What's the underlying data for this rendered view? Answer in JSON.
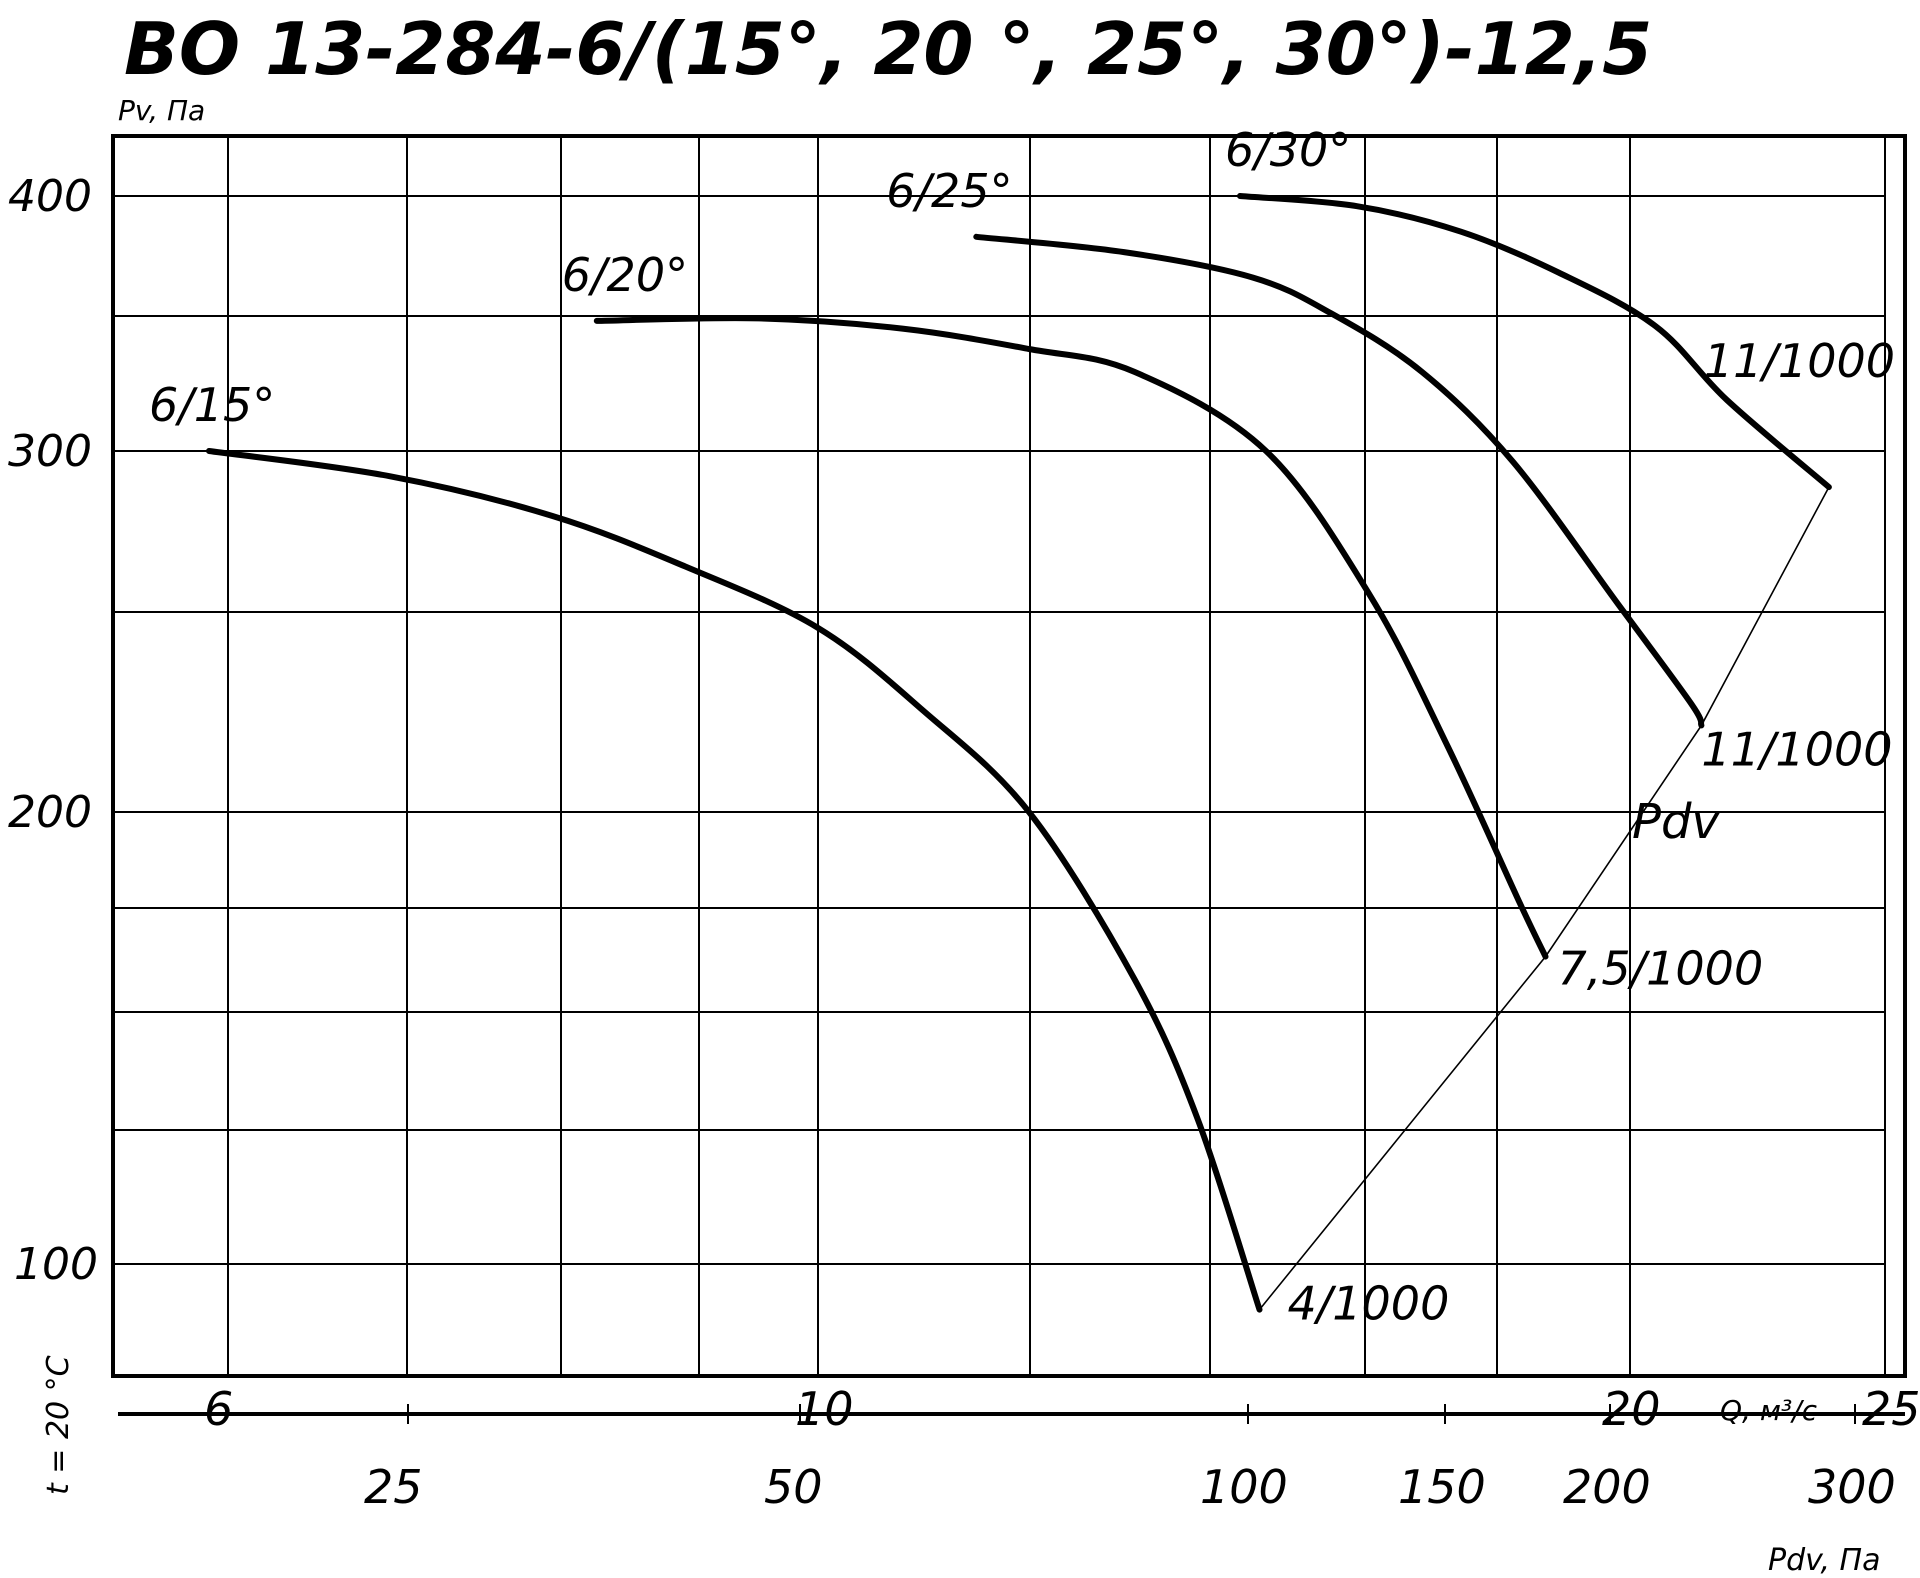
{
  "chart_data": {
    "type": "line",
    "title": "ВО 13-284-6/(15°, 20 °, 25°, 30°)-12,5",
    "ylabel": "Pv, Па",
    "xlabel": "Q, м³/с",
    "x2label": "Pdv, Па",
    "side_note": "t = 20 °C",
    "y_ticks": [
      {
        "label": "400",
        "value": 400
      },
      {
        "label": "300",
        "value": 300
      },
      {
        "label": "200",
        "value": 200
      },
      {
        "label": "100",
        "value": 100
      }
    ],
    "x_ticks": [
      {
        "label": "6",
        "value": 6
      },
      {
        "label": "10",
        "value": 10
      },
      {
        "label": "20",
        "value": 20
      },
      {
        "label": "25",
        "value": 25
      }
    ],
    "x2_ticks": [
      {
        "label": "25",
        "value": 25
      },
      {
        "label": "50",
        "value": 50
      },
      {
        "label": "100",
        "value": 100
      },
      {
        "label": "150",
        "value": 150
      },
      {
        "label": "200",
        "value": 200
      },
      {
        "label": "300",
        "value": 300
      }
    ],
    "series": [
      {
        "name": "6/15°",
        "end_label": "4/1000",
        "points": [
          [
            5.9,
            300
          ],
          [
            7.1,
            293
          ],
          [
            8.2,
            282
          ],
          [
            9.1,
            268
          ],
          [
            10.0,
            251
          ],
          [
            11.0,
            228
          ],
          [
            12.0,
            200
          ],
          [
            13.0,
            163
          ],
          [
            13.6,
            132
          ],
          [
            14.3,
            88
          ]
        ]
      },
      {
        "name": "6/20°",
        "end_label": "7,5/1000",
        "points": [
          [
            8.5,
            351
          ],
          [
            9.6,
            352
          ],
          [
            10.8,
            348
          ],
          [
            12.0,
            340
          ],
          [
            13.0,
            331
          ],
          [
            14.4,
            300
          ],
          [
            16.0,
            260
          ],
          [
            17.2,
            218
          ],
          [
            18.3,
            180
          ],
          [
            18.7,
            168
          ]
        ]
      },
      {
        "name": "6/25°",
        "end_label": "11/1000",
        "points": [
          [
            11.5,
            384
          ],
          [
            12.9,
            378
          ],
          [
            14.2,
            368
          ],
          [
            15.4,
            354
          ],
          [
            16.8,
            331
          ],
          [
            18.2,
            297
          ],
          [
            19.8,
            258
          ],
          [
            21.2,
            230
          ],
          [
            21.4,
            224
          ]
        ]
      },
      {
        "name": "6/30°",
        "end_label": "11/1000",
        "points": [
          [
            14.0,
            400
          ],
          [
            15.8,
            396
          ],
          [
            17.4,
            386
          ],
          [
            18.9,
            370
          ],
          [
            20.5,
            349
          ],
          [
            21.9,
            320
          ],
          [
            23.9,
            290
          ]
        ]
      }
    ],
    "pdv_line_label": "Pdv",
    "pdv_line": [
      [
        14.3,
        88
      ],
      [
        18.7,
        168
      ],
      [
        21.4,
        224
      ],
      [
        23.9,
        290
      ]
    ],
    "grid": true
  }
}
